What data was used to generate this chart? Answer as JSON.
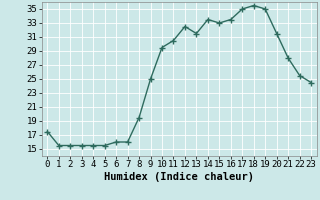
{
  "x": [
    0,
    1,
    2,
    3,
    4,
    5,
    6,
    7,
    8,
    9,
    10,
    11,
    12,
    13,
    14,
    15,
    16,
    17,
    18,
    19,
    20,
    21,
    22,
    23
  ],
  "y": [
    17.5,
    15.5,
    15.5,
    15.5,
    15.5,
    15.5,
    16.0,
    16.0,
    19.5,
    25.0,
    29.5,
    30.5,
    32.5,
    31.5,
    33.5,
    33.0,
    33.5,
    35.0,
    35.5,
    35.0,
    31.5,
    28.0,
    25.5,
    24.5
  ],
  "line_color": "#2e6b5e",
  "marker": "+",
  "marker_size": 4,
  "bg_color": "#cce8e8",
  "grid_color": "#b0d0d0",
  "xlabel": "Humidex (Indice chaleur)",
  "xlim": [
    -0.5,
    23.5
  ],
  "ylim": [
    14,
    36
  ],
  "yticks": [
    15,
    17,
    19,
    21,
    23,
    25,
    27,
    29,
    31,
    33,
    35
  ],
  "xticks": [
    0,
    1,
    2,
    3,
    4,
    5,
    6,
    7,
    8,
    9,
    10,
    11,
    12,
    13,
    14,
    15,
    16,
    17,
    18,
    19,
    20,
    21,
    22,
    23
  ],
  "xtick_labels": [
    "0",
    "1",
    "2",
    "3",
    "4",
    "5",
    "6",
    "7",
    "8",
    "9",
    "10",
    "11",
    "12",
    "13",
    "14",
    "15",
    "16",
    "17",
    "18",
    "19",
    "20",
    "21",
    "22",
    "23"
  ],
  "tick_fontsize": 6.5,
  "xlabel_fontsize": 7.5
}
